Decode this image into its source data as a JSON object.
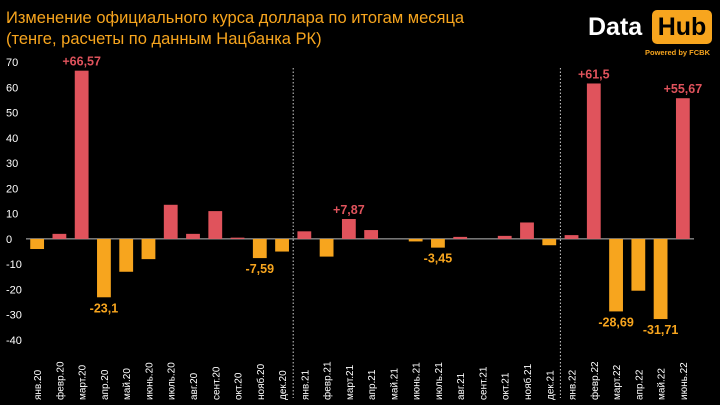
{
  "header": {
    "title_line1": "Изменение официального курса доллара по итогам месяца",
    "title_line2": "(тенге, расчеты по данным Нацбанка РК)"
  },
  "logo": {
    "data_text": "Data",
    "hub_text": "Hub",
    "powered_text": "Powered by FCBK"
  },
  "colors": {
    "background": "#000000",
    "positive": "#e0535c",
    "negative": "#f7a51e",
    "text": "#f7a51e",
    "axis": "#ffffff"
  },
  "chart_data": {
    "type": "bar",
    "categories": [
      "янв.20",
      "февр.20",
      "март.20",
      "апр.20",
      "май.20",
      "июнь.20",
      "июль.20",
      "авг.20",
      "сент.20",
      "окт.20",
      "нояб.20",
      "дек.20",
      "янв.21",
      "февр.21",
      "март.21",
      "апр.21",
      "май.21",
      "июнь.21",
      "июль.21",
      "авг.21",
      "сент.21",
      "окт.21",
      "нояб.21",
      "дек.21",
      "янв.22",
      "февр.22",
      "март.22",
      "апр.22",
      "май.22",
      "июнь.22"
    ],
    "values": [
      -4.0,
      2.0,
      66.57,
      -23.1,
      -13.0,
      -8.0,
      13.5,
      2.0,
      11.0,
      0.5,
      -7.59,
      -5.0,
      3.0,
      -7.0,
      7.87,
      3.5,
      0.0,
      -1.0,
      -3.45,
      0.8,
      0.0,
      1.2,
      6.5,
      -2.5,
      1.5,
      61.5,
      -28.69,
      -20.5,
      -31.71,
      55.67
    ],
    "ylim": [
      -40,
      70
    ],
    "yticks": [
      70,
      60,
      50,
      40,
      30,
      20,
      10,
      0,
      -10,
      -20,
      -30,
      -40
    ],
    "data_labels": [
      {
        "index": 2,
        "text": "+66,57"
      },
      {
        "index": 3,
        "text": "-23,1"
      },
      {
        "index": 10,
        "text": "-7,59"
      },
      {
        "index": 14,
        "text": "+7,87"
      },
      {
        "index": 18,
        "text": "-3,45"
      },
      {
        "index": 25,
        "text": "+61,5"
      },
      {
        "index": 26,
        "text": "-28,69"
      },
      {
        "index": 28,
        "text": "-31,71"
      },
      {
        "index": 29,
        "text": "+55,67"
      }
    ],
    "year_separators_after": [
      11,
      23
    ],
    "grid": false
  }
}
